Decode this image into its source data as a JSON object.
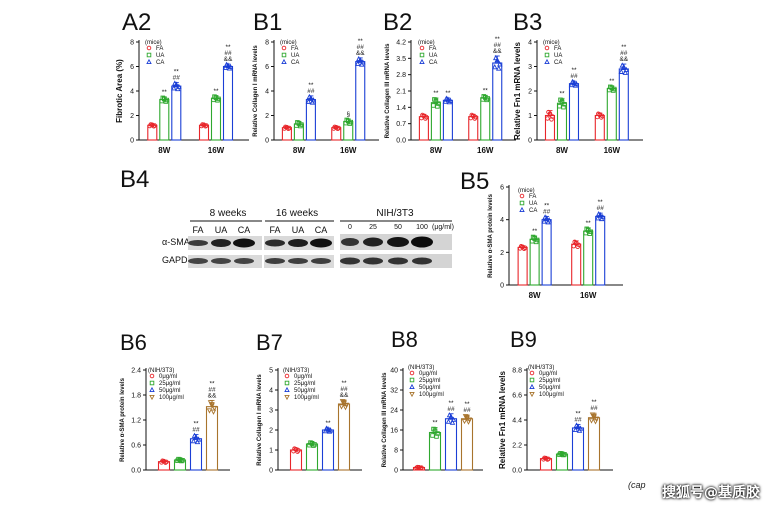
{
  "colors": {
    "FA": "#e8262b",
    "UA": "#2fa82f",
    "CA": "#1b3fd6",
    "c0": "#e8262b",
    "c25": "#2fa82f",
    "c50": "#1b3fd6",
    "c100": "#a8742d"
  },
  "watermark": {
    "cap": "(cap",
    "text": "搜狐号@基质胶"
  },
  "western": {
    "label": "B4",
    "group1": "8 weeks",
    "group2": "16 weeks",
    "group3": "NIH/3T3",
    "lanes1": [
      "FA",
      "UA",
      "CA"
    ],
    "lanes2": [
      "FA",
      "UA",
      "CA"
    ],
    "lanes3": [
      "0",
      "25",
      "50",
      "100"
    ],
    "unit": "(μg/ml)",
    "rows": [
      "α-SMA",
      "GAPDH"
    ]
  },
  "chart_data": [
    {
      "id": "A2",
      "label": "A2",
      "type": "bar",
      "ylabel": "Fibrotic Area (%)",
      "ylim": [
        0,
        8
      ],
      "yticks": [
        "0",
        "2",
        "4",
        "6",
        "8"
      ],
      "legend_title": "(mice)",
      "legend": [
        "FA",
        "UA",
        "CA"
      ],
      "categories": [
        "8W",
        "16W"
      ],
      "series": [
        {
          "name": "FA",
          "values": [
            1.2,
            1.2
          ],
          "errors": [
            0.1,
            0.1
          ],
          "marks": [
            "",
            ""
          ]
        },
        {
          "name": "UA",
          "values": [
            3.3,
            3.4
          ],
          "errors": [
            0.2,
            0.2
          ],
          "marks": [
            "**",
            "**"
          ]
        },
        {
          "name": "CA",
          "values": [
            4.4,
            6.0
          ],
          "errors": [
            0.3,
            0.2
          ],
          "marks": [
            "**\n##",
            "**\n##\n&&"
          ]
        }
      ]
    },
    {
      "id": "B1",
      "label": "B1",
      "type": "bar",
      "ylabel": "Relative Collagen I mRNA levels",
      "ylim": [
        0,
        8
      ],
      "yticks": [
        "0",
        "2",
        "4",
        "6",
        "8"
      ],
      "legend_title": "(mice)",
      "legend": [
        "FA",
        "UA",
        "CA"
      ],
      "categories": [
        "8W",
        "16W"
      ],
      "series": [
        {
          "name": "FA",
          "values": [
            1.0,
            1.0
          ],
          "errors": [
            0.1,
            0.1
          ],
          "marks": [
            "",
            ""
          ]
        },
        {
          "name": "UA",
          "values": [
            1.3,
            1.5
          ],
          "errors": [
            0.2,
            0.2
          ],
          "marks": [
            "",
            "§"
          ]
        },
        {
          "name": "CA",
          "values": [
            3.3,
            6.4
          ],
          "errors": [
            0.3,
            0.3
          ],
          "marks": [
            "**\n##",
            "**\n##\n&&"
          ]
        }
      ]
    },
    {
      "id": "B2",
      "label": "B2",
      "type": "bar",
      "ylabel": "Relative Collagen III mRNA levels",
      "ylim": [
        0.0,
        4.2
      ],
      "yticks": [
        "0.0",
        "0.7",
        "1.4",
        "2.1",
        "2.8",
        "3.5",
        "4.2"
      ],
      "legend_title": "(mice)",
      "legend": [
        "FA",
        "UA",
        "CA"
      ],
      "categories": [
        "8W",
        "16W"
      ],
      "series": [
        {
          "name": "FA",
          "values": [
            1.0,
            1.0
          ],
          "errors": [
            0.1,
            0.1
          ],
          "marks": [
            "",
            ""
          ]
        },
        {
          "name": "UA",
          "values": [
            1.6,
            1.8
          ],
          "errors": [
            0.2,
            0.1
          ],
          "marks": [
            "**",
            "**"
          ]
        },
        {
          "name": "CA",
          "values": [
            1.7,
            3.3
          ],
          "errors": [
            0.1,
            0.3
          ],
          "marks": [
            "**",
            "**\n##\n&&"
          ]
        }
      ]
    },
    {
      "id": "B3",
      "label": "B3",
      "type": "bar",
      "ylabel": "Relative Fn1 mRNA levels",
      "ylim": [
        0,
        4
      ],
      "yticks": [
        "0",
        "1",
        "2",
        "3",
        "4"
      ],
      "legend_title": "(mice)",
      "legend": [
        "FA",
        "UA",
        "CA"
      ],
      "categories": [
        "8W",
        "16W"
      ],
      "series": [
        {
          "name": "FA",
          "values": [
            1.0,
            1.0
          ],
          "errors": [
            0.2,
            0.1
          ],
          "marks": [
            "",
            ""
          ]
        },
        {
          "name": "UA",
          "values": [
            1.5,
            2.1
          ],
          "errors": [
            0.2,
            0.1
          ],
          "marks": [
            "**",
            "**"
          ]
        },
        {
          "name": "CA",
          "values": [
            2.3,
            2.9
          ],
          "errors": [
            0.1,
            0.2
          ],
          "marks": [
            "**\n##",
            "**\n##\n&&"
          ]
        }
      ]
    },
    {
      "id": "B5",
      "label": "B5",
      "type": "bar",
      "ylabel": "Relative α-SMA protein levels",
      "ylim": [
        0,
        6
      ],
      "yticks": [
        "0",
        "2",
        "4",
        "6"
      ],
      "legend_title": "(mice)",
      "legend": [
        "FA",
        "UA",
        "CA"
      ],
      "categories": [
        "8W",
        "16W"
      ],
      "series": [
        {
          "name": "FA",
          "values": [
            2.3,
            2.5
          ],
          "errors": [
            0.1,
            0.2
          ],
          "marks": [
            "",
            ""
          ]
        },
        {
          "name": "UA",
          "values": [
            2.8,
            3.3
          ],
          "errors": [
            0.2,
            0.2
          ],
          "marks": [
            "**",
            "**"
          ]
        },
        {
          "name": "CA",
          "values": [
            4.0,
            4.2
          ],
          "errors": [
            0.2,
            0.2
          ],
          "marks": [
            "**\n##",
            "**\n##"
          ]
        }
      ]
    },
    {
      "id": "B6",
      "label": "B6",
      "type": "bar",
      "ylabel": "Relative α-SMA protein levels",
      "ylim": [
        0.0,
        2.4
      ],
      "yticks": [
        "0.0",
        "0.6",
        "1.2",
        "1.8",
        "2.4"
      ],
      "legend_title": "(NIH/3T3)",
      "legend": [
        "0μg/ml",
        "25μg/ml",
        "50μg/ml",
        "100μg/ml"
      ],
      "categories": [
        ""
      ],
      "series": [
        {
          "name": "0μg/ml",
          "values": [
            0.2
          ],
          "errors": [
            0.03
          ],
          "marks": [
            ""
          ]
        },
        {
          "name": "25μg/ml",
          "values": [
            0.24
          ],
          "errors": [
            0.03
          ],
          "marks": [
            ""
          ]
        },
        {
          "name": "50μg/ml",
          "values": [
            0.75
          ],
          "errors": [
            0.1
          ],
          "marks": [
            "**\n##"
          ]
        },
        {
          "name": "100μg/ml",
          "values": [
            1.52
          ],
          "errors": [
            0.15
          ],
          "marks": [
            "**\n##\n&&"
          ]
        }
      ]
    },
    {
      "id": "B7",
      "label": "B7",
      "type": "bar",
      "ylabel": "Relative Collagen I mRNA levels",
      "ylim": [
        0,
        5
      ],
      "yticks": [
        "0",
        "1",
        "2",
        "3",
        "4",
        "5"
      ],
      "legend_title": "(NIH/3T3)",
      "legend": [
        "0μg/ml",
        "25μg/ml",
        "50μg/ml",
        "100μg/ml"
      ],
      "categories": [
        ""
      ],
      "series": [
        {
          "name": "0μg/ml",
          "values": [
            1.0
          ],
          "errors": [
            0.1
          ],
          "marks": [
            ""
          ]
        },
        {
          "name": "25μg/ml",
          "values": [
            1.3
          ],
          "errors": [
            0.1
          ],
          "marks": [
            ""
          ]
        },
        {
          "name": "50μg/ml",
          "values": [
            2.0
          ],
          "errors": [
            0.1
          ],
          "marks": [
            "**"
          ]
        },
        {
          "name": "100μg/ml",
          "values": [
            3.3
          ],
          "errors": [
            0.2
          ],
          "marks": [
            "**\n##\n&&"
          ]
        }
      ]
    },
    {
      "id": "B8",
      "label": "B8",
      "type": "bar",
      "ylabel": "Relative Collagen III mRNA levels",
      "ylim": [
        0,
        40
      ],
      "yticks": [
        "0",
        "8",
        "16",
        "24",
        "32",
        "40"
      ],
      "legend_title": "(NIH/3T3)",
      "legend": [
        "0μg/ml",
        "25μg/ml",
        "50μg/ml",
        "100μg/ml"
      ],
      "categories": [
        ""
      ],
      "series": [
        {
          "name": "0μg/ml",
          "values": [
            1.0
          ],
          "errors": [
            0.2
          ],
          "marks": [
            ""
          ]
        },
        {
          "name": "25μg/ml",
          "values": [
            15.0
          ],
          "errors": [
            2.0
          ],
          "marks": [
            "**"
          ]
        },
        {
          "name": "50μg/ml",
          "values": [
            20.5
          ],
          "errors": [
            2.0
          ],
          "marks": [
            "**\n##"
          ]
        },
        {
          "name": "100μg/ml",
          "values": [
            20.5
          ],
          "errors": [
            1.5
          ],
          "marks": [
            "**\n##"
          ]
        }
      ]
    },
    {
      "id": "B9",
      "label": "B9",
      "type": "bar",
      "ylabel": "Relative Fn1 mRNA levels",
      "ylim": [
        0.0,
        8.8
      ],
      "yticks": [
        "0.0",
        "2.2",
        "4.4",
        "6.6",
        "8.8"
      ],
      "legend_title": "(NIH/3T3)",
      "legend": [
        "0μg/ml",
        "25μg/ml",
        "50μg/ml",
        "100μg/ml"
      ],
      "categories": [
        ""
      ],
      "series": [
        {
          "name": "0μg/ml",
          "values": [
            1.0
          ],
          "errors": [
            0.1
          ],
          "marks": [
            ""
          ]
        },
        {
          "name": "25μg/ml",
          "values": [
            1.4
          ],
          "errors": [
            0.1
          ],
          "marks": [
            ""
          ]
        },
        {
          "name": "50μg/ml",
          "values": [
            3.7
          ],
          "errors": [
            0.3
          ],
          "marks": [
            "**\n##"
          ]
        },
        {
          "name": "100μg/ml",
          "values": [
            4.6
          ],
          "errors": [
            0.4
          ],
          "marks": [
            "**\n##"
          ]
        }
      ]
    }
  ]
}
